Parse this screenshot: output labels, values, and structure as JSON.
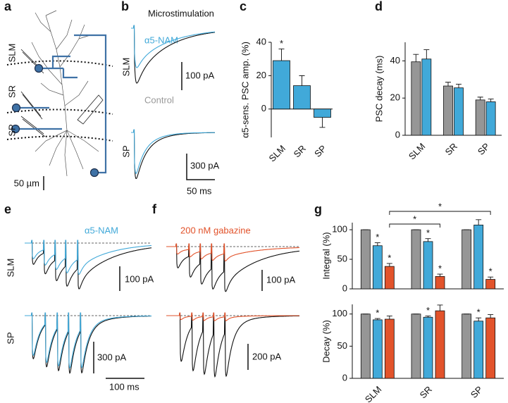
{
  "panel_labels": [
    "a",
    "b",
    "c",
    "d",
    "e",
    "f",
    "g"
  ],
  "neuron": {
    "layers": [
      "SLM",
      "SR",
      "SP"
    ],
    "scale_bar": "50 µm"
  },
  "microstimulation": {
    "title": "Microstimulation",
    "drug": "α5-NAM",
    "control": "Control",
    "rows": [
      "SLM",
      "SP"
    ],
    "scale_bars": [
      "100 pA",
      "300 pA",
      "50 ms"
    ]
  },
  "train_nam": {
    "drug": "α5-NAM",
    "rows": [
      "SLM",
      "SP"
    ],
    "scale_bars": [
      "100 pA",
      "300 pA",
      "100 ms"
    ]
  },
  "train_gabazine": {
    "drug": "200 nM gabazine",
    "scale_bars": [
      "100 pA",
      "200 pA"
    ]
  },
  "chart_data": [
    {
      "type": "bar",
      "ylabel": "α5-sens. PSC amp. (%)",
      "categories": [
        "SLM",
        "SR",
        "SP"
      ],
      "series": [
        {
          "color": "#41a9d9",
          "values": [
            29,
            14,
            -5
          ],
          "errors": [
            7,
            6,
            6
          ],
          "stars": [
            "*",
            null,
            null
          ]
        }
      ],
      "ylim": [
        -17,
        40
      ],
      "yticks": [
        0,
        20,
        40
      ]
    },
    {
      "type": "bar",
      "ylabel": "PSC decay (ms)",
      "categories": [
        "SLM",
        "SR",
        "SP"
      ],
      "series": [
        {
          "color": "#969696",
          "values": [
            39.5,
            26.5,
            19
          ],
          "errors": [
            4,
            2,
            1.5
          ]
        },
        {
          "color": "#41a9d9",
          "values": [
            41,
            25.5,
            18
          ],
          "errors": [
            5,
            2,
            1.5
          ]
        }
      ],
      "ylim": [
        0,
        50
      ],
      "yticks": [
        0,
        20,
        40
      ]
    },
    {
      "type": "bar",
      "ylabel": "Integral (%)",
      "categories": [
        null,
        null,
        null
      ],
      "series": [
        {
          "color": "#969696",
          "values": [
            100,
            100,
            100
          ],
          "errors": [
            0,
            0,
            0
          ]
        },
        {
          "color": "#41a9d9",
          "values": [
            73,
            80,
            108
          ],
          "errors": [
            5,
            5,
            9
          ],
          "stars": [
            "*",
            "*",
            null
          ]
        },
        {
          "color": "#e2532b",
          "values": [
            38,
            21,
            16
          ],
          "errors": [
            5,
            4,
            4
          ],
          "stars": [
            "*",
            "*",
            "*"
          ]
        }
      ],
      "bracket_labels": [
        "*",
        "*"
      ],
      "ylim": [
        0,
        112
      ],
      "yticks": [
        0,
        50,
        100
      ]
    },
    {
      "type": "bar",
      "ylabel": "Decay (%)",
      "categories": [
        "SLM",
        "SR",
        "SP"
      ],
      "series": [
        {
          "color": "#969696",
          "values": [
            100,
            100,
            100
          ],
          "errors": [
            0,
            0,
            0
          ]
        },
        {
          "color": "#41a9d9",
          "values": [
            91,
            95,
            89
          ],
          "errors": [
            2,
            2,
            5
          ],
          "stars": [
            "*",
            "*",
            "*"
          ]
        },
        {
          "color": "#e2532b",
          "values": [
            92,
            105,
            94
          ],
          "errors": [
            5,
            9,
            5
          ]
        }
      ],
      "ylim": [
        0,
        115
      ],
      "yticks": [
        0,
        50,
        100
      ]
    }
  ]
}
